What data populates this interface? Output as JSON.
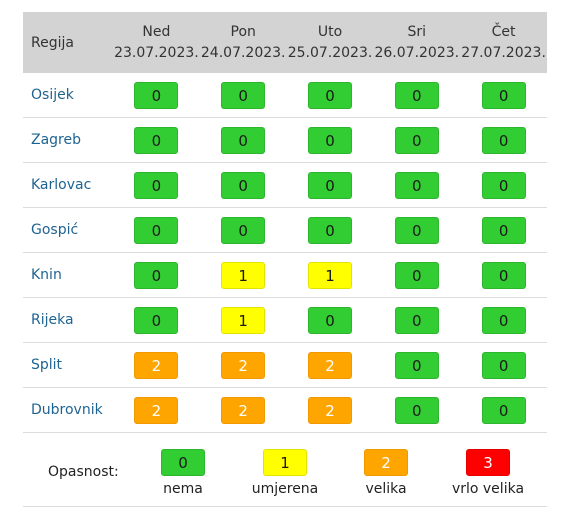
{
  "header": {
    "region_label": "Regija",
    "days": [
      {
        "name": "Ned",
        "date": "23.07.2023."
      },
      {
        "name": "Pon",
        "date": "24.07.2023."
      },
      {
        "name": "Uto",
        "date": "25.07.2023."
      },
      {
        "name": "Sri",
        "date": "26.07.2023."
      },
      {
        "name": "Čet",
        "date": "27.07.2023."
      }
    ]
  },
  "rows": [
    {
      "region": "Osijek",
      "values": [
        "0",
        "0",
        "0",
        "0",
        "0"
      ]
    },
    {
      "region": "Zagreb",
      "values": [
        "0",
        "0",
        "0",
        "0",
        "0"
      ]
    },
    {
      "region": "Karlovac",
      "values": [
        "0",
        "0",
        "0",
        "0",
        "0"
      ]
    },
    {
      "region": "Gospić",
      "values": [
        "0",
        "0",
        "0",
        "0",
        "0"
      ]
    },
    {
      "region": "Knin",
      "values": [
        "0",
        "1",
        "1",
        "0",
        "0"
      ]
    },
    {
      "region": "Rijeka",
      "values": [
        "0",
        "1",
        "0",
        "0",
        "0"
      ]
    },
    {
      "region": "Split",
      "values": [
        "2",
        "2",
        "2",
        "0",
        "0"
      ]
    },
    {
      "region": "Dubrovnik",
      "values": [
        "2",
        "2",
        "2",
        "0",
        "0"
      ]
    }
  ],
  "legend": {
    "title": "Opasnost:",
    "items": [
      {
        "value": "0",
        "label": "nema"
      },
      {
        "value": "1",
        "label": "umjerena"
      },
      {
        "value": "2",
        "label": "velika"
      },
      {
        "value": "3",
        "label": "vrlo velika"
      }
    ]
  },
  "colors": {
    "level_0": "#32cd32",
    "level_1": "#ffff00",
    "level_2": "#ffa500",
    "level_3": "#ff0000",
    "region_link": "#1f6391",
    "header_bg": "#d3d3d3"
  }
}
